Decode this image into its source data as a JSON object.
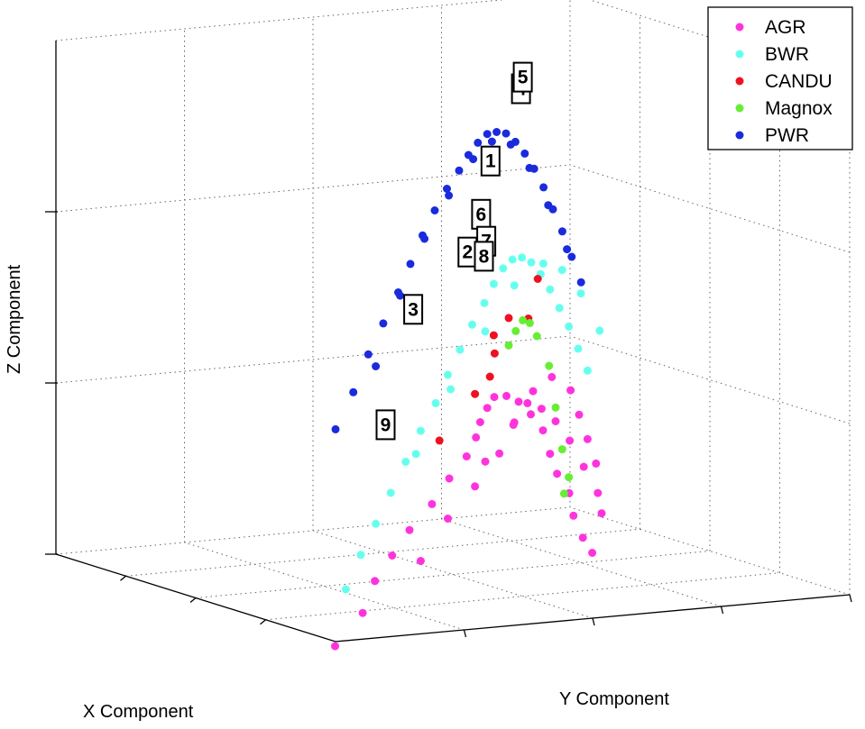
{
  "chart_data": {
    "type": "scatter",
    "projection": "3d",
    "grid": true,
    "xlabel": "X Component",
    "ylabel": "Y Component",
    "zlabel": "Z Component",
    "legend_position": "top-right",
    "series": [
      {
        "name": "AGR",
        "color": "#ff33dd",
        "points": [
          [
            0.02,
            0.01,
            -0.02
          ],
          [
            0.05,
            0.08,
            0.06
          ],
          [
            0.08,
            0.12,
            0.14
          ],
          [
            0.11,
            0.17,
            0.2
          ],
          [
            0.14,
            0.22,
            0.26
          ],
          [
            0.17,
            0.28,
            0.32
          ],
          [
            0.2,
            0.33,
            0.38
          ],
          [
            0.23,
            0.38,
            0.43
          ],
          [
            0.27,
            0.42,
            0.47
          ],
          [
            0.31,
            0.45,
            0.5
          ],
          [
            0.34,
            0.48,
            0.53
          ],
          [
            0.37,
            0.51,
            0.55
          ],
          [
            0.4,
            0.55,
            0.54
          ],
          [
            0.43,
            0.59,
            0.51
          ],
          [
            0.46,
            0.63,
            0.46
          ],
          [
            0.49,
            0.67,
            0.4
          ],
          [
            0.52,
            0.7,
            0.32
          ],
          [
            0.55,
            0.73,
            0.25
          ],
          [
            0.58,
            0.77,
            0.18
          ],
          [
            0.62,
            0.8,
            0.1
          ],
          [
            0.66,
            0.84,
            0.02
          ],
          [
            0.7,
            0.88,
            -0.04
          ],
          [
            0.1,
            0.22,
            0.18
          ],
          [
            0.15,
            0.3,
            0.28
          ],
          [
            0.2,
            0.38,
            0.35
          ],
          [
            0.26,
            0.46,
            0.42
          ],
          [
            0.32,
            0.52,
            0.48
          ],
          [
            0.38,
            0.58,
            0.52
          ],
          [
            0.44,
            0.64,
            0.48
          ],
          [
            0.5,
            0.7,
            0.42
          ],
          [
            0.56,
            0.76,
            0.34
          ],
          [
            0.62,
            0.82,
            0.24
          ],
          [
            0.68,
            0.88,
            0.14
          ],
          [
            0.74,
            0.92,
            0.06
          ],
          [
            0.2,
            0.4,
            0.42
          ],
          [
            0.28,
            0.5,
            0.5
          ],
          [
            0.36,
            0.58,
            0.56
          ],
          [
            0.44,
            0.66,
            0.57
          ],
          [
            0.52,
            0.74,
            0.5
          ],
          [
            0.6,
            0.8,
            0.4
          ],
          [
            0.68,
            0.86,
            0.3
          ],
          [
            0.76,
            0.92,
            0.2
          ]
        ]
      },
      {
        "name": "BWR",
        "color": "#66ffee",
        "points": [
          [
            0.0,
            0.02,
            0.15
          ],
          [
            0.02,
            0.06,
            0.24
          ],
          [
            0.04,
            0.1,
            0.32
          ],
          [
            0.06,
            0.14,
            0.4
          ],
          [
            0.08,
            0.18,
            0.48
          ],
          [
            0.1,
            0.22,
            0.56
          ],
          [
            0.12,
            0.26,
            0.63
          ],
          [
            0.15,
            0.3,
            0.7
          ],
          [
            0.18,
            0.34,
            0.76
          ],
          [
            0.21,
            0.38,
            0.82
          ],
          [
            0.24,
            0.42,
            0.87
          ],
          [
            0.28,
            0.46,
            0.91
          ],
          [
            0.32,
            0.5,
            0.94
          ],
          [
            0.36,
            0.54,
            0.95
          ],
          [
            0.4,
            0.58,
            0.94
          ],
          [
            0.44,
            0.62,
            0.91
          ],
          [
            0.48,
            0.66,
            0.86
          ],
          [
            0.52,
            0.7,
            0.8
          ],
          [
            0.56,
            0.74,
            0.73
          ],
          [
            0.6,
            0.78,
            0.66
          ],
          [
            0.64,
            0.82,
            0.58
          ],
          [
            0.68,
            0.86,
            0.5
          ],
          [
            0.08,
            0.2,
            0.5
          ],
          [
            0.14,
            0.3,
            0.66
          ],
          [
            0.2,
            0.4,
            0.8
          ],
          [
            0.28,
            0.5,
            0.9
          ],
          [
            0.36,
            0.6,
            0.93
          ],
          [
            0.44,
            0.68,
            0.88
          ],
          [
            0.52,
            0.76,
            0.78
          ],
          [
            0.6,
            0.84,
            0.64
          ]
        ]
      },
      {
        "name": "CANDU",
        "color": "#ee1122",
        "points": [
          [
            0.18,
            0.3,
            0.5
          ],
          [
            0.2,
            0.38,
            0.62
          ],
          [
            0.24,
            0.44,
            0.72
          ],
          [
            0.3,
            0.5,
            0.8
          ],
          [
            0.34,
            0.56,
            0.78
          ],
          [
            0.38,
            0.6,
            0.88
          ],
          [
            0.28,
            0.46,
            0.76
          ],
          [
            0.22,
            0.42,
            0.66
          ]
        ]
      },
      {
        "name": "Magnox",
        "color": "#66ee33",
        "points": [
          [
            0.3,
            0.5,
            0.72
          ],
          [
            0.33,
            0.53,
            0.75
          ],
          [
            0.36,
            0.56,
            0.77
          ],
          [
            0.39,
            0.59,
            0.75
          ],
          [
            0.42,
            0.62,
            0.7
          ],
          [
            0.45,
            0.66,
            0.6
          ],
          [
            0.5,
            0.7,
            0.46
          ],
          [
            0.55,
            0.74,
            0.32
          ],
          [
            0.6,
            0.78,
            0.22
          ],
          [
            0.58,
            0.76,
            0.18
          ]
        ]
      },
      {
        "name": "PWR",
        "color": "#1a2bdd",
        "points": [
          [
            0.0,
            0.0,
            0.62
          ],
          [
            0.01,
            0.04,
            0.72
          ],
          [
            0.03,
            0.08,
            0.82
          ],
          [
            0.05,
            0.12,
            0.9
          ],
          [
            0.07,
            0.16,
            0.98
          ],
          [
            0.1,
            0.2,
            1.05
          ],
          [
            0.13,
            0.24,
            1.12
          ],
          [
            0.16,
            0.28,
            1.18
          ],
          [
            0.19,
            0.32,
            1.23
          ],
          [
            0.22,
            0.36,
            1.27
          ],
          [
            0.26,
            0.4,
            1.3
          ],
          [
            0.3,
            0.44,
            1.32
          ],
          [
            0.34,
            0.48,
            1.33
          ],
          [
            0.38,
            0.52,
            1.32
          ],
          [
            0.42,
            0.56,
            1.3
          ],
          [
            0.46,
            0.6,
            1.26
          ],
          [
            0.5,
            0.64,
            1.21
          ],
          [
            0.54,
            0.68,
            1.15
          ],
          [
            0.58,
            0.72,
            1.08
          ],
          [
            0.62,
            0.76,
            1.0
          ],
          [
            0.66,
            0.8,
            0.92
          ],
          [
            0.7,
            0.84,
            0.83
          ],
          [
            0.74,
            0.88,
            0.74
          ],
          [
            0.04,
            0.1,
            0.78
          ],
          [
            0.1,
            0.18,
            0.96
          ],
          [
            0.16,
            0.26,
            1.1
          ],
          [
            0.22,
            0.34,
            1.2
          ],
          [
            0.28,
            0.42,
            1.28
          ],
          [
            0.36,
            0.5,
            1.3
          ],
          [
            0.44,
            0.58,
            1.26
          ],
          [
            0.52,
            0.66,
            1.16
          ],
          [
            0.6,
            0.74,
            1.02
          ],
          [
            0.68,
            0.82,
            0.86
          ]
        ]
      }
    ],
    "annotations": [
      {
        "text": "1",
        "point": [
          0.31,
          0.47,
          1.26
        ]
      },
      {
        "text": "2",
        "point": [
          0.19,
          0.36,
          1.04
        ]
      },
      {
        "text": "3",
        "point": [
          0.09,
          0.2,
          0.92
        ]
      },
      {
        "text": "4",
        "point": [
          0.44,
          0.6,
          1.42
        ]
      },
      {
        "text": "5",
        "point": [
          0.36,
          0.56,
          1.48
        ]
      },
      {
        "text": "6",
        "point": [
          0.27,
          0.43,
          1.12
        ]
      },
      {
        "text": "7",
        "point": [
          0.27,
          0.44,
          1.04
        ]
      },
      {
        "text": "8",
        "point": [
          0.26,
          0.43,
          1.0
        ]
      },
      {
        "text": "9",
        "point": [
          0.06,
          0.13,
          0.6
        ]
      }
    ]
  }
}
